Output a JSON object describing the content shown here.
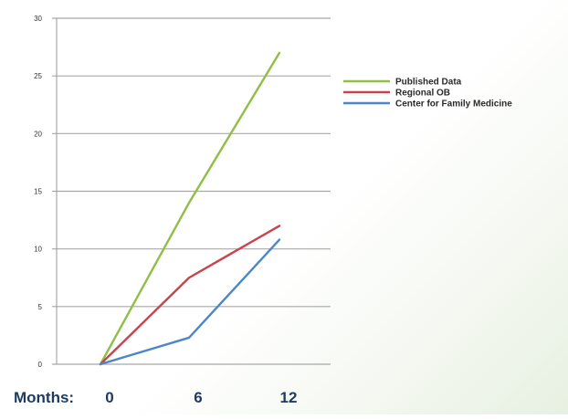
{
  "chart_data": {
    "type": "line",
    "x": [
      0,
      6,
      12
    ],
    "x_axis_prefix": "Months:",
    "ylim": [
      0,
      30
    ],
    "yticks": [
      0,
      5,
      10,
      15,
      20,
      25,
      30
    ],
    "grid": true,
    "legend_position": "right",
    "series": [
      {
        "name": "Published Data",
        "color": "#8fbf45",
        "values": [
          0,
          14,
          27
        ]
      },
      {
        "name": "Regional OB",
        "color": "#c9434b",
        "values": [
          0,
          7.5,
          12
        ]
      },
      {
        "name": "Center for Family Medicine",
        "color": "#4a86c8",
        "values": [
          0,
          2.3,
          10.8
        ]
      }
    ]
  }
}
